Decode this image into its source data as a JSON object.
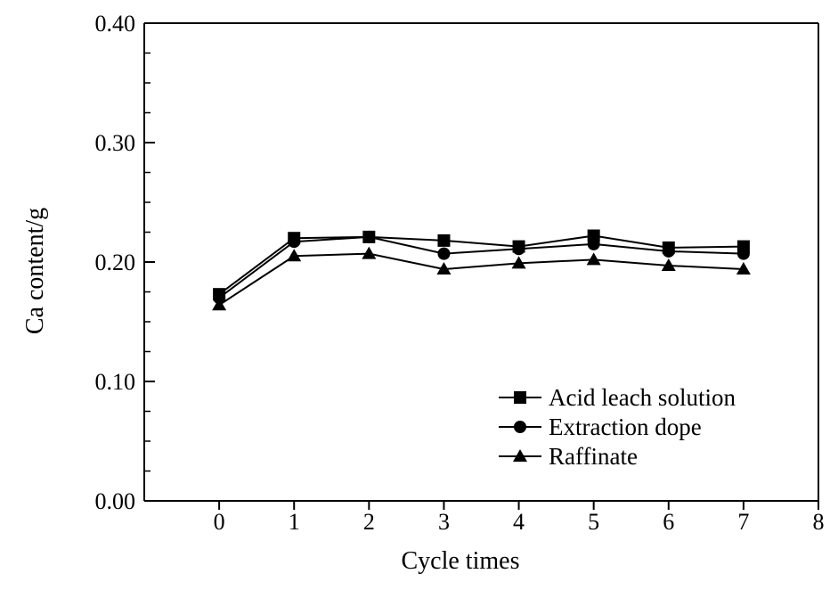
{
  "chart_data": {
    "type": "line",
    "title": "",
    "xlabel": "Cycle times",
    "ylabel": "Ca content/g",
    "xlim": [
      -1,
      8
    ],
    "ylim": [
      0.0,
      0.4
    ],
    "x_ticks": [
      "0",
      "1",
      "2",
      "3",
      "4",
      "5",
      "6",
      "7",
      "8"
    ],
    "x_tick_values": [
      0,
      1,
      2,
      3,
      4,
      5,
      6,
      7,
      8
    ],
    "y_ticks": [
      "0.00",
      "0.10",
      "0.20",
      "0.30",
      "0.40"
    ],
    "y_tick_values": [
      0.0,
      0.1,
      0.2,
      0.3,
      0.4
    ],
    "grid": false,
    "legend_position": "bottom-right",
    "x": [
      0,
      1,
      2,
      3,
      4,
      5,
      6,
      7
    ],
    "series": [
      {
        "name": "Acid leach solution",
        "marker": "square",
        "color": "#000000",
        "values": [
          0.173,
          0.22,
          0.221,
          0.218,
          0.213,
          0.222,
          0.212,
          0.213
        ]
      },
      {
        "name": "Extraction dope",
        "marker": "circle",
        "color": "#000000",
        "values": [
          0.17,
          0.217,
          0.221,
          0.207,
          0.211,
          0.215,
          0.209,
          0.207
        ]
      },
      {
        "name": "Raffinate",
        "marker": "triangle",
        "color": "#000000",
        "values": [
          0.164,
          0.205,
          0.207,
          0.194,
          0.199,
          0.202,
          0.197,
          0.194
        ]
      }
    ]
  }
}
